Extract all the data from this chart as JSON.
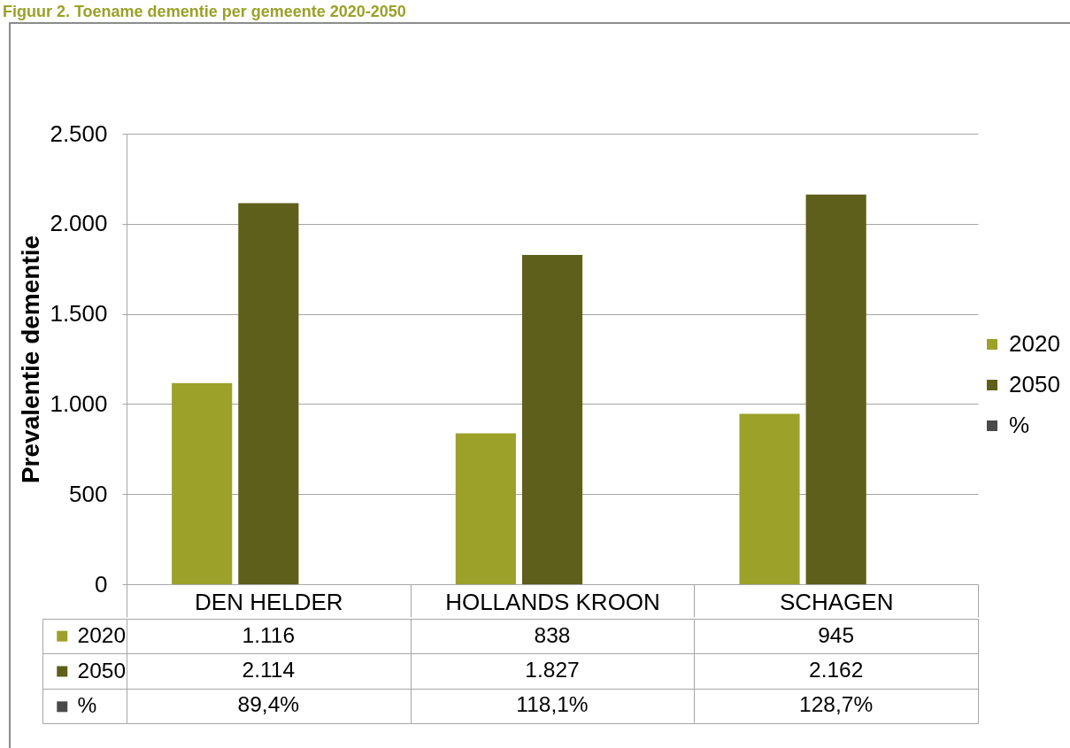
{
  "chart_data": {
    "type": "bar",
    "title": "Figuur 2. Toename dementie per gemeente 2020-2050",
    "ylabel": "Prevalentie dementie",
    "categories": [
      "DEN HELDER",
      "HOLLANDS KROON",
      "SCHAGEN"
    ],
    "series": [
      {
        "name": "2020",
        "color": "#9ba129",
        "values": [
          1116,
          838,
          945
        ],
        "value_labels": [
          "1.116",
          "838",
          "945"
        ]
      },
      {
        "name": "2050",
        "color": "#5e5f1a",
        "values": [
          2114,
          1827,
          2162
        ],
        "value_labels": [
          "2.114",
          "1.827",
          "2.162"
        ]
      },
      {
        "name": "%",
        "color": "#4a4a4a",
        "values": [
          null,
          null,
          null
        ],
        "value_labels": [
          "89,4%",
          "118,1%",
          "128,7%"
        ]
      }
    ],
    "ylim": [
      0,
      2500
    ],
    "yticks": [
      0,
      500,
      {
        "value": 1000,
        "label": "1.000"
      },
      {
        "value": 1500,
        "label": "1.500"
      },
      {
        "value": 2000,
        "label": "2.000"
      },
      {
        "value": 2500,
        "label": "2.500"
      }
    ],
    "grid": "y",
    "legend": "right"
  }
}
